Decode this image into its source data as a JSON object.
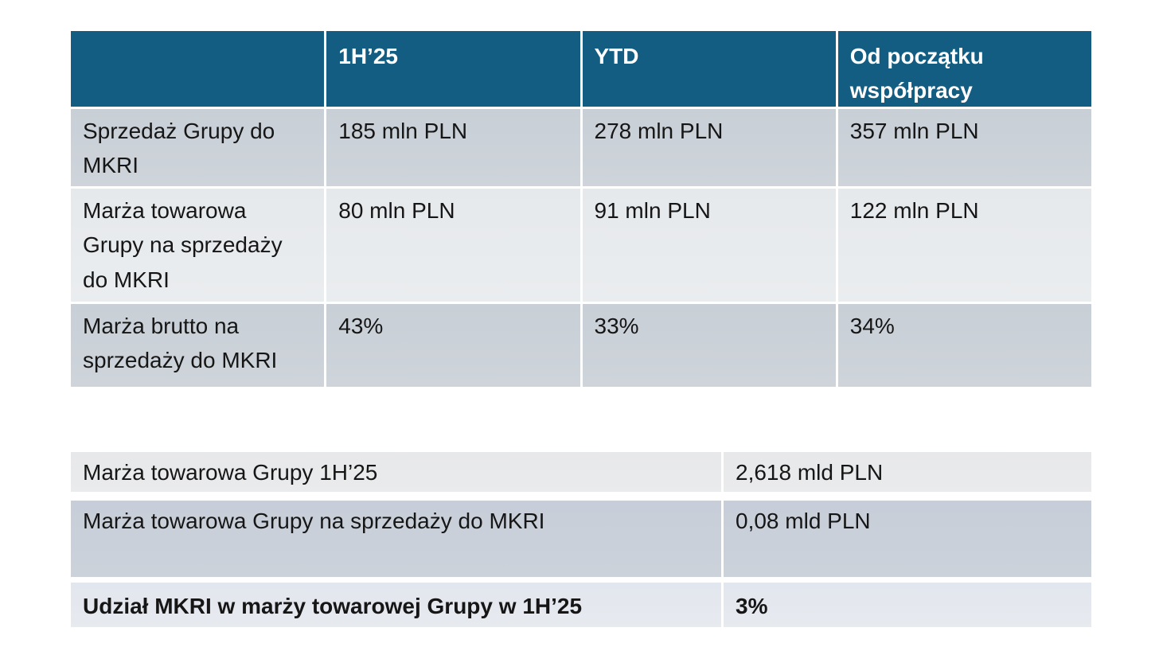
{
  "page": {
    "background": "#ffffff",
    "description_language": "pl"
  },
  "colors": {
    "header_bg": "#135d82",
    "header_text": "#ffffff",
    "band_dark": "#ccd2d9",
    "band_light": "#e8ebee",
    "body_text": "#161616",
    "share_row1_bg": "#e9eaec",
    "share_row2_bg": "#c9d0d9",
    "share_row3_bg": "#e5e9ef"
  },
  "summary_table": {
    "columns": [
      "",
      "1H’25",
      "YTD",
      "Od początku współpracy"
    ],
    "rows": [
      {
        "label": "Sprzedaż Grupy do MKRI",
        "values": [
          "185 mln PLN",
          "278 mln PLN",
          "357 mln PLN"
        ]
      },
      {
        "label": "Marża towarowa Grupy na sprzedaży do MKRI",
        "values": [
          "80 mln PLN",
          "91 mln PLN",
          "122 mln PLN"
        ]
      },
      {
        "label": "Marża brutto na sprzedaży do MKRI",
        "values": [
          "43%",
          "33%",
          "34%"
        ]
      }
    ]
  },
  "share_table": {
    "rows": [
      {
        "label": "Marża towarowa Grupy 1H’25",
        "value": "2,618 mld PLN",
        "bold": false
      },
      {
        "label": "Marża towarowa Grupy na sprzedaży do MKRI",
        "value": "0,08 mld PLN",
        "bold": false
      },
      {
        "label": "Udział MKRI w marży towarowej Grupy w 1H’25",
        "value": "3%",
        "bold": true
      }
    ]
  }
}
